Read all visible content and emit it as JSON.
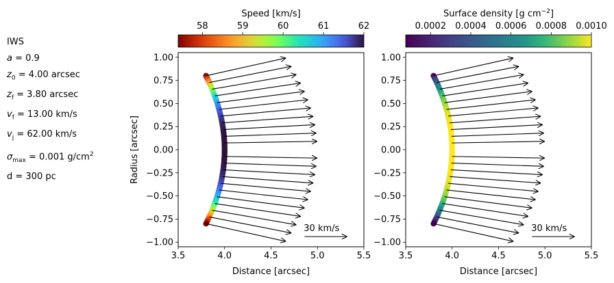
{
  "params": {
    "title": "IWS",
    "lines": [
      {
        "sym": "a",
        "sub": "",
        "sup": "",
        "rest": " = 0.9"
      },
      {
        "sym": "z",
        "sub": "0",
        "sup": "",
        "rest": " = 4.00 arcsec"
      },
      {
        "sym": "z",
        "sub": "f",
        "sup": "",
        "rest": " = 3.80 arcsec"
      },
      {
        "sym": "v",
        "sub": "f",
        "sup": "",
        "rest": " = 13.00 km/s"
      },
      {
        "sym": "v",
        "sub": "j",
        "sup": "",
        "rest": " = 62.00 km/s"
      },
      {
        "sym": "σ",
        "sub": "max",
        "sup": "",
        "rest": " = 0.001 g/cm",
        "rest_sup": "2"
      }
    ],
    "last": "d = 300 pc"
  },
  "chart_data": [
    {
      "type": "scatter",
      "xlabel": "Distance [arcsec]",
      "ylabel": "Radius [arcsec]",
      "xlim": [
        3.5,
        5.5
      ],
      "ylim": [
        -1.05,
        1.05
      ],
      "xticks": [
        "3.5",
        "4.0",
        "4.5",
        "5.0",
        "5.5"
      ],
      "yticks": [
        "1.00",
        "0.75",
        "0.50",
        "0.25",
        "0.00",
        "−0.25",
        "−0.50",
        "−0.75",
        "−1.00"
      ],
      "colorbar": {
        "label": "Speed [km/s]",
        "range": [
          57.4,
          62.0
        ],
        "ticks": [
          "58",
          "59",
          "60",
          "61",
          "62"
        ],
        "colormap": "turbo_r"
      },
      "color_by": "speed",
      "vector_key": {
        "label": "30 km/s",
        "value": 30
      },
      "curve_model": {
        "x0": 3.8,
        "x_axis": 4.0,
        "r_max": 0.8,
        "shape": "x = x0 + (x_axis - x0) * (1 - (r / r_max)^2)"
      },
      "arrows_r": [
        0.8,
        0.727,
        0.655,
        0.582,
        0.509,
        0.436,
        0.364,
        0.291,
        0.218,
        0.145,
        0.073,
        -0.073,
        -0.145,
        -0.218,
        -0.291,
        -0.364,
        -0.436,
        -0.509,
        -0.582,
        -0.655,
        -0.727,
        -0.8
      ]
    },
    {
      "type": "scatter",
      "xlabel": "Distance [arcsec]",
      "ylabel": "",
      "xlim": [
        3.5,
        5.5
      ],
      "ylim": [
        -1.05,
        1.05
      ],
      "xticks": [
        "3.5",
        "4.0",
        "4.5",
        "5.0",
        "5.5"
      ],
      "yticks": [
        "1.00",
        "0.75",
        "0.50",
        "0.25",
        "0.00",
        "−0.25",
        "−0.50",
        "−0.75",
        "−1.00"
      ],
      "colorbar": {
        "label": "Surface density [g cm",
        "label_sup": "−2",
        "label_end": "]",
        "range": [
          7.6e-05,
          0.001
        ],
        "ticks": [
          "0.0002",
          "0.0004",
          "0.0006",
          "0.0008",
          "0.0010"
        ],
        "colormap": "viridis"
      },
      "color_by": "density",
      "vector_key": {
        "label": "30 km/s",
        "value": 30
      },
      "curve_model": {
        "x0": 3.8,
        "x_axis": 4.0,
        "r_max": 0.8,
        "shape": "x = x0 + (x_axis - x0) * (1 - (r / r_max)^2)"
      },
      "arrows_r": [
        0.8,
        0.727,
        0.655,
        0.582,
        0.509,
        0.436,
        0.364,
        0.291,
        0.218,
        0.145,
        0.073,
        -0.073,
        -0.145,
        -0.218,
        -0.291,
        -0.364,
        -0.436,
        -0.509,
        -0.582,
        -0.655,
        -0.727,
        -0.8
      ]
    }
  ]
}
